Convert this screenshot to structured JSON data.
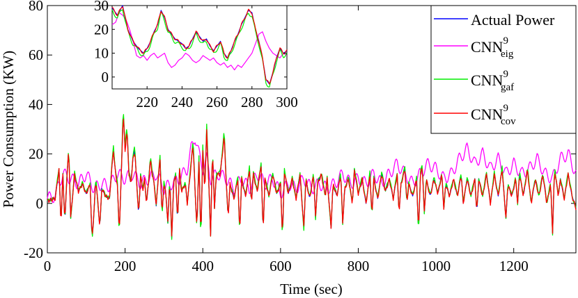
{
  "chart_data": [
    {
      "type": "line",
      "title": "",
      "xlabel": "Time (sec)",
      "ylabel": "Power Consumption (KW)",
      "xlim": [
        0,
        1360
      ],
      "ylim": [
        -20,
        80
      ],
      "xticks": [
        0,
        200,
        400,
        600,
        800,
        1000,
        1200
      ],
      "yticks": [
        -20,
        0,
        20,
        40,
        60,
        80
      ],
      "xtick_labels": [
        "0",
        "200",
        "400",
        "600",
        "800",
        "1000",
        "1200"
      ],
      "ytick_labels": [
        "-20",
        "0",
        "20",
        "40",
        "60",
        "80"
      ],
      "legend_position": "top-right",
      "grid": false,
      "series": [
        {
          "key": "actual",
          "label": "Actual Power",
          "color": "#0000ff"
        },
        {
          "key": "eig",
          "label_base": "CNN",
          "label_sup": "9",
          "label_sub": "eig",
          "color": "#ff00ff"
        },
        {
          "key": "gaf",
          "label_base": "CNN",
          "label_sup": "9",
          "label_sub": "gaf",
          "color": "#00ee00"
        },
        {
          "key": "cov",
          "label_base": "CNN",
          "label_sup": "9",
          "label_sub": "cov",
          "color": "#ff0000"
        }
      ],
      "main_knots": [
        [
          0,
          1
        ],
        [
          20,
          2
        ],
        [
          25,
          8
        ],
        [
          30,
          14
        ],
        [
          35,
          -9
        ],
        [
          40,
          12
        ],
        [
          45,
          -8
        ],
        [
          50,
          10
        ],
        [
          55,
          22
        ],
        [
          60,
          -6
        ],
        [
          70,
          12
        ],
        [
          80,
          5
        ],
        [
          90,
          8
        ],
        [
          100,
          4
        ],
        [
          110,
          8
        ],
        [
          115,
          -15
        ],
        [
          120,
          -3
        ],
        [
          125,
          10
        ],
        [
          135,
          -10
        ],
        [
          140,
          6
        ],
        [
          150,
          3
        ],
        [
          160,
          2
        ],
        [
          165,
          13
        ],
        [
          170,
          22
        ],
        [
          175,
          13
        ],
        [
          180,
          8
        ],
        [
          185,
          -12
        ],
        [
          190,
          10
        ],
        [
          195,
          38
        ],
        [
          200,
          22
        ],
        [
          205,
          30
        ],
        [
          210,
          12
        ],
        [
          215,
          8
        ],
        [
          220,
          18
        ],
        [
          225,
          22
        ],
        [
          230,
          8
        ],
        [
          235,
          -5
        ],
        [
          240,
          12
        ],
        [
          245,
          5
        ],
        [
          250,
          10
        ],
        [
          255,
          0
        ],
        [
          260,
          8
        ],
        [
          265,
          18
        ],
        [
          270,
          12
        ],
        [
          275,
          8
        ],
        [
          280,
          -1
        ],
        [
          285,
          10
        ],
        [
          290,
          18
        ],
        [
          295,
          -5
        ],
        [
          300,
          8
        ],
        [
          305,
          4
        ],
        [
          310,
          -8
        ],
        [
          315,
          10
        ],
        [
          320,
          -14
        ],
        [
          325,
          8
        ],
        [
          330,
          12
        ],
        [
          335,
          -8
        ],
        [
          340,
          14
        ],
        [
          345,
          5
        ],
        [
          355,
          8
        ],
        [
          360,
          0
        ],
        [
          365,
          8
        ],
        [
          375,
          25
        ],
        [
          380,
          5
        ],
        [
          385,
          -10
        ],
        [
          390,
          18
        ],
        [
          395,
          -15
        ],
        [
          400,
          22
        ],
        [
          405,
          5
        ],
        [
          410,
          30
        ],
        [
          415,
          10
        ],
        [
          420,
          -13
        ],
        [
          425,
          22
        ],
        [
          430,
          -2
        ],
        [
          435,
          12
        ],
        [
          445,
          12
        ],
        [
          455,
          28
        ],
        [
          460,
          10
        ],
        [
          465,
          -6
        ],
        [
          470,
          8
        ],
        [
          480,
          2
        ],
        [
          490,
          10
        ],
        [
          495,
          -12
        ],
        [
          500,
          10
        ],
        [
          510,
          3
        ],
        [
          520,
          14
        ],
        [
          525,
          0
        ],
        [
          530,
          12
        ],
        [
          540,
          5
        ],
        [
          550,
          16
        ],
        [
          555,
          -12
        ],
        [
          560,
          10
        ],
        [
          570,
          3
        ],
        [
          580,
          12
        ],
        [
          590,
          4
        ],
        [
          600,
          8
        ],
        [
          605,
          -14
        ],
        [
          610,
          13
        ],
        [
          620,
          4
        ],
        [
          630,
          10
        ],
        [
          640,
          2
        ],
        [
          650,
          12
        ],
        [
          660,
          -10
        ],
        [
          665,
          10
        ],
        [
          675,
          2
        ],
        [
          685,
          12
        ],
        [
          690,
          -6
        ],
        [
          695,
          8
        ],
        [
          705,
          12
        ],
        [
          715,
          3
        ],
        [
          720,
          10
        ],
        [
          730,
          -10
        ],
        [
          735,
          8
        ],
        [
          745,
          3
        ],
        [
          755,
          12
        ],
        [
          760,
          -8
        ],
        [
          765,
          6
        ],
        [
          775,
          10
        ],
        [
          785,
          0
        ],
        [
          790,
          14
        ],
        [
          800,
          4
        ],
        [
          810,
          10
        ],
        [
          820,
          0
        ],
        [
          830,
          12
        ],
        [
          835,
          -5
        ],
        [
          840,
          10
        ],
        [
          850,
          2
        ],
        [
          860,
          12
        ],
        [
          870,
          5
        ],
        [
          880,
          10
        ],
        [
          890,
          2
        ],
        [
          900,
          12
        ],
        [
          905,
          -4
        ],
        [
          910,
          8
        ],
        [
          920,
          14
        ],
        [
          925,
          0
        ],
        [
          930,
          8
        ],
        [
          940,
          3
        ],
        [
          950,
          10
        ],
        [
          955,
          -12
        ],
        [
          960,
          12
        ],
        [
          965,
          15
        ],
        [
          970,
          -4
        ],
        [
          975,
          10
        ],
        [
          985,
          3
        ],
        [
          995,
          10
        ],
        [
          1005,
          4
        ],
        [
          1015,
          12
        ],
        [
          1020,
          -2
        ],
        [
          1025,
          8
        ],
        [
          1035,
          3
        ],
        [
          1045,
          10
        ],
        [
          1055,
          3
        ],
        [
          1065,
          12
        ],
        [
          1070,
          0
        ],
        [
          1080,
          10
        ],
        [
          1090,
          3
        ],
        [
          1100,
          10
        ],
        [
          1105,
          -4
        ],
        [
          1110,
          10
        ],
        [
          1120,
          3
        ],
        [
          1130,
          12
        ],
        [
          1140,
          0
        ],
        [
          1150,
          12
        ],
        [
          1160,
          3
        ],
        [
          1170,
          14
        ],
        [
          1180,
          -6
        ],
        [
          1185,
          8
        ],
        [
          1195,
          3
        ],
        [
          1205,
          10
        ],
        [
          1210,
          0
        ],
        [
          1215,
          12
        ],
        [
          1225,
          3
        ],
        [
          1235,
          14
        ],
        [
          1245,
          0
        ],
        [
          1255,
          10
        ],
        [
          1265,
          3
        ],
        [
          1275,
          12
        ],
        [
          1285,
          0
        ],
        [
          1295,
          8
        ],
        [
          1300,
          -12
        ],
        [
          1305,
          14
        ],
        [
          1315,
          3
        ],
        [
          1320,
          10
        ],
        [
          1330,
          2
        ],
        [
          1340,
          12
        ],
        [
          1350,
          3
        ],
        [
          1360,
          -2
        ]
      ],
      "main_eig_knots": [
        [
          0,
          2
        ],
        [
          20,
          3
        ],
        [
          30,
          8
        ],
        [
          40,
          12
        ],
        [
          60,
          10
        ],
        [
          80,
          8
        ],
        [
          100,
          12
        ],
        [
          120,
          6
        ],
        [
          140,
          8
        ],
        [
          160,
          7
        ],
        [
          180,
          12
        ],
        [
          200,
          10
        ],
        [
          220,
          12
        ],
        [
          240,
          8
        ],
        [
          260,
          10
        ],
        [
          280,
          12
        ],
        [
          300,
          6
        ],
        [
          320,
          8
        ],
        [
          340,
          10
        ],
        [
          360,
          14
        ],
        [
          370,
          22
        ],
        [
          380,
          27
        ],
        [
          390,
          20
        ],
        [
          400,
          14
        ],
        [
          410,
          18
        ],
        [
          420,
          10
        ],
        [
          440,
          12
        ],
        [
          460,
          10
        ],
        [
          480,
          6
        ],
        [
          500,
          10
        ],
        [
          520,
          6
        ],
        [
          540,
          12
        ],
        [
          560,
          8
        ],
        [
          580,
          10
        ],
        [
          600,
          4
        ],
        [
          620,
          8
        ],
        [
          640,
          6
        ],
        [
          660,
          10
        ],
        [
          680,
          6
        ],
        [
          700,
          8
        ],
        [
          720,
          6
        ],
        [
          740,
          8
        ],
        [
          760,
          12
        ],
        [
          780,
          8
        ],
        [
          800,
          10
        ],
        [
          820,
          8
        ],
        [
          840,
          12
        ],
        [
          860,
          8
        ],
        [
          880,
          12
        ],
        [
          900,
          16
        ],
        [
          920,
          12
        ],
        [
          940,
          8
        ],
        [
          960,
          12
        ],
        [
          980,
          16
        ],
        [
          1000,
          14
        ],
        [
          1020,
          10
        ],
        [
          1040,
          12
        ],
        [
          1060,
          18
        ],
        [
          1080,
          22
        ],
        [
          1100,
          16
        ],
        [
          1120,
          20
        ],
        [
          1140,
          14
        ],
        [
          1160,
          18
        ],
        [
          1180,
          12
        ],
        [
          1200,
          16
        ],
        [
          1220,
          12
        ],
        [
          1240,
          14
        ],
        [
          1260,
          18
        ],
        [
          1280,
          12
        ],
        [
          1300,
          10
        ],
        [
          1320,
          18
        ],
        [
          1340,
          20
        ],
        [
          1360,
          12
        ]
      ],
      "inset_knots": [
        [
          200,
          29
        ],
        [
          203,
          26
        ],
        [
          206,
          30
        ],
        [
          209,
          20
        ],
        [
          212,
          15
        ],
        [
          215,
          12
        ],
        [
          218,
          10
        ],
        [
          220,
          12
        ],
        [
          222,
          15
        ],
        [
          224,
          19
        ],
        [
          226,
          22
        ],
        [
          228,
          28
        ],
        [
          230,
          25
        ],
        [
          232,
          20
        ],
        [
          234,
          18
        ],
        [
          236,
          16
        ],
        [
          238,
          15
        ],
        [
          240,
          14
        ],
        [
          242,
          12
        ],
        [
          244,
          13
        ],
        [
          246,
          16
        ],
        [
          248,
          19
        ],
        [
          250,
          17
        ],
        [
          252,
          15
        ],
        [
          254,
          16
        ],
        [
          256,
          13
        ],
        [
          258,
          11
        ],
        [
          260,
          13
        ],
        [
          262,
          15
        ],
        [
          264,
          10
        ],
        [
          266,
          8
        ],
        [
          268,
          11
        ],
        [
          270,
          15
        ],
        [
          272,
          18
        ],
        [
          274,
          22
        ],
        [
          276,
          25
        ],
        [
          278,
          28
        ],
        [
          280,
          27
        ],
        [
          282,
          20
        ],
        [
          284,
          15
        ],
        [
          286,
          8
        ],
        [
          288,
          -1
        ],
        [
          290,
          -3
        ],
        [
          292,
          2
        ],
        [
          294,
          8
        ],
        [
          296,
          12
        ],
        [
          298,
          10
        ],
        [
          300,
          11
        ]
      ],
      "inset_eig_knots": [
        [
          200,
          22
        ],
        [
          202,
          23
        ],
        [
          204,
          27
        ],
        [
          206,
          26
        ],
        [
          208,
          24
        ],
        [
          210,
          20
        ],
        [
          212,
          15
        ],
        [
          214,
          9
        ],
        [
          216,
          8
        ],
        [
          218,
          9
        ],
        [
          220,
          7
        ],
        [
          222,
          9
        ],
        [
          224,
          10
        ],
        [
          226,
          8
        ],
        [
          228,
          9
        ],
        [
          230,
          10
        ],
        [
          232,
          6
        ],
        [
          234,
          4
        ],
        [
          236,
          5
        ],
        [
          238,
          7
        ],
        [
          240,
          8
        ],
        [
          242,
          10
        ],
        [
          244,
          9
        ],
        [
          246,
          7
        ],
        [
          248,
          6
        ],
        [
          250,
          7
        ],
        [
          252,
          9
        ],
        [
          254,
          8
        ],
        [
          256,
          7
        ],
        [
          258,
          8
        ],
        [
          260,
          6
        ],
        [
          262,
          5
        ],
        [
          264,
          6
        ],
        [
          266,
          4
        ],
        [
          268,
          5
        ],
        [
          270,
          3
        ],
        [
          272,
          5
        ],
        [
          274,
          4
        ],
        [
          276,
          6
        ],
        [
          278,
          8
        ],
        [
          280,
          10
        ],
        [
          282,
          14
        ],
        [
          284,
          18
        ],
        [
          286,
          19
        ],
        [
          288,
          15
        ],
        [
          290,
          12
        ],
        [
          292,
          10
        ],
        [
          294,
          9
        ],
        [
          296,
          8
        ],
        [
          298,
          10
        ],
        [
          300,
          9
        ]
      ]
    },
    {
      "type": "line",
      "title": "",
      "xlabel": "",
      "ylabel": "",
      "xlim": [
        200,
        300
      ],
      "ylim": [
        -5,
        30
      ],
      "xticks": [
        220,
        240,
        260,
        280,
        300
      ],
      "yticks": [
        0,
        10,
        20,
        30
      ],
      "xtick_labels": [
        "220",
        "240",
        "260",
        "280",
        "300"
      ],
      "ytick_labels": [
        "0",
        "10",
        "20",
        "30"
      ],
      "grid": false
    }
  ]
}
